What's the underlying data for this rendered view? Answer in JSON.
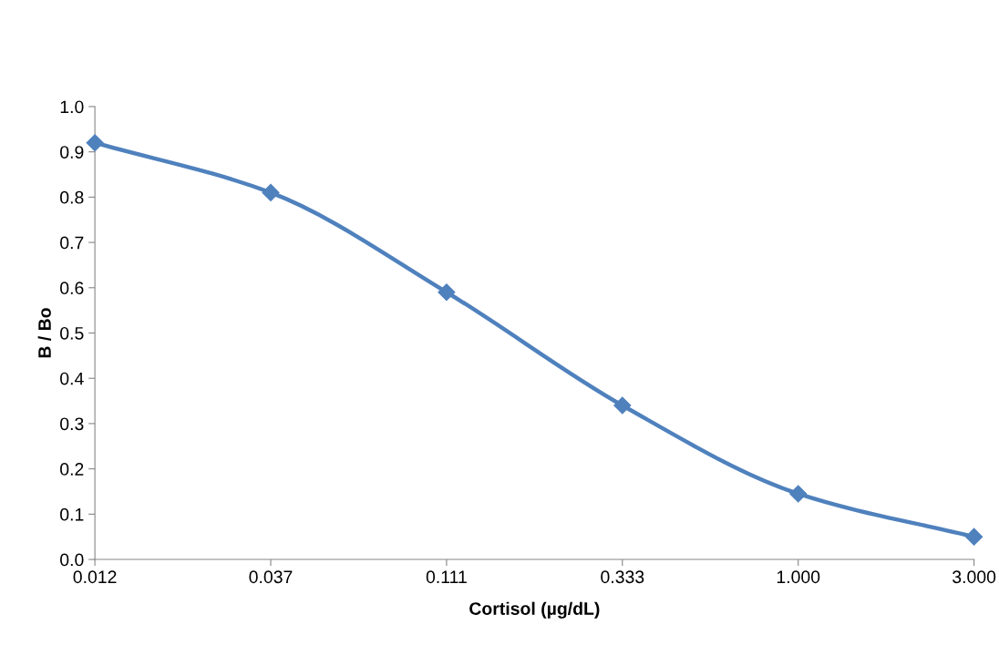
{
  "chart_data": {
    "type": "line",
    "xlabel": "Cortisol (µg/dL)",
    "ylabel": "B / Bo",
    "categories": [
      "0.012",
      "0.037",
      "0.111",
      "0.333",
      "1.000",
      "3.000"
    ],
    "series": [
      {
        "color": "#4f81bd",
        "values": [
          0.92,
          0.81,
          0.59,
          0.34,
          0.145,
          0.05
        ]
      }
    ],
    "ylim": [
      0,
      1.0
    ],
    "yticks": [
      {
        "value": 0,
        "label": "0.0"
      },
      0.1,
      0.2,
      0.3,
      0.4,
      0.5,
      0.6,
      0.7,
      0.8,
      0.9,
      {
        "value": 1.0,
        "label": "1.0"
      }
    ],
    "grid": false,
    "legend": false,
    "marker": "diamond",
    "line_style": "solid"
  }
}
